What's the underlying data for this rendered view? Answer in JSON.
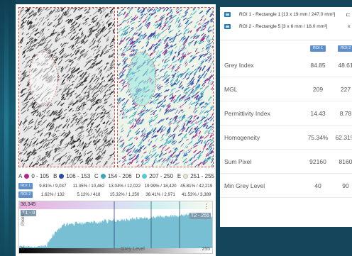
{
  "colors": {
    "roi_tag": "#5e8fcb",
    "roi_border": "#d04a4a",
    "class_a": "#b0278a",
    "class_b": "#2f4aa8",
    "class_c": "#38a8b8",
    "class_d": "#58c8d8",
    "class_e": "#e8e8c8",
    "histogram_fill": "#62b4cb"
  },
  "images": {
    "left_label": "",
    "right_label": ""
  },
  "legend": [
    {
      "letter": "A",
      "range": "0 - 105",
      "color": "#b0278a"
    },
    {
      "letter": "B",
      "range": "106 - 153",
      "color": "#2f4aa8"
    },
    {
      "letter": "C",
      "range": "154 - 206",
      "color": "#38a8b8"
    },
    {
      "letter": "D",
      "range": "207 - 250",
      "color": "#58c8d8"
    },
    {
      "letter": "E",
      "range": "251 - 255",
      "color": "#e8e8c8"
    }
  ],
  "roi_stats": [
    {
      "tag": "ROI 1",
      "values": [
        "9.81% / 9,037",
        "11.35% / 10,462",
        "13.04% / 12,022",
        "19.99% / 18,420",
        "45.81% / 42,219"
      ]
    },
    {
      "tag": "ROI 2",
      "values": [
        "1.62% / 132",
        "5.12% / 418",
        "15.32% / 1,250",
        "36.41% / 2,971",
        "41.53% / 3,389"
      ]
    }
  ],
  "histogram": {
    "y_max": "38,345",
    "y_label": "Pixels",
    "x_label": "Grey Level",
    "x_min": "0",
    "x_max": "255",
    "badge_left": "T1 - 0",
    "badge_right": "T2 - 255",
    "menu_icon": "vertical-dots-icon"
  },
  "roi_list": [
    {
      "icon": "rectangle-icon",
      "text": "ROI 1 - Rectangle 1 [13 x 19 mm / 247.0 mm²]",
      "action": "⊏"
    },
    {
      "icon": "rectangle-icon",
      "text": "ROI 2 - Rectangle 5 [3 x 6 mm / 18.0 mm²]",
      "action": "×"
    }
  ],
  "stats_table": {
    "headers": [
      "ROI 1",
      "ROI 2"
    ],
    "rows": [
      {
        "label": "Grey Index",
        "roi1": "84.85",
        "roi2": "48.61"
      },
      {
        "label": "MGL",
        "roi1": "209",
        "roi2": "227"
      },
      {
        "label": "Permittivity Index",
        "roi1": "14.43",
        "roi2": "8.78"
      },
      {
        "label": "Homogeneity",
        "roi1": "75.34%",
        "roi2": "62.31%"
      },
      {
        "label": "Sum Pixel",
        "roi1": "92160",
        "roi2": "8160"
      },
      {
        "label": "Min Grey Level",
        "roi1": "40",
        "roi2": "90"
      }
    ]
  }
}
